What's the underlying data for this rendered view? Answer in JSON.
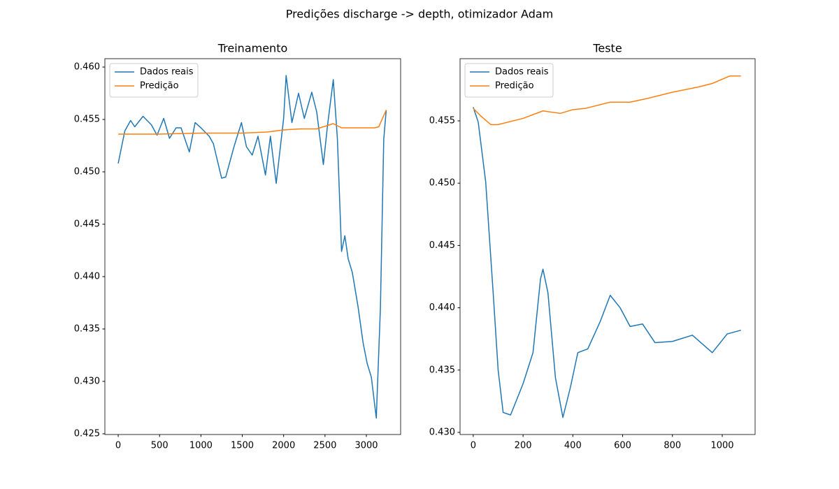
{
  "title": "Predições discharge -> depth, otimizador Adam",
  "chart_data": [
    {
      "type": "line",
      "title": "Treinamento",
      "legend": "upper left",
      "grid": false,
      "xlim": [
        -161,
        3414
      ],
      "ylim": [
        0.42493,
        0.4608
      ],
      "xticks": [
        0,
        500,
        1000,
        1500,
        2000,
        2500,
        3000
      ],
      "yticks": [
        0.425,
        {
          "value": 0.43,
          "label": "0.430"
        },
        0.435,
        {
          "value": 0.44,
          "label": "0.440"
        },
        0.445,
        {
          "value": 0.45,
          "label": "0.450"
        },
        0.455,
        {
          "value": 0.46,
          "label": "0.460"
        }
      ],
      "series": [
        {
          "name": "Dados reais",
          "color": "#1f77b4",
          "x": [
            0,
            80,
            150,
            200,
            300,
            400,
            470,
            550,
            620,
            700,
            760,
            860,
            930,
            1000,
            1100,
            1150,
            1250,
            1300,
            1400,
            1490,
            1550,
            1620,
            1690,
            1780,
            1840,
            1910,
            2000,
            2030,
            2100,
            2180,
            2250,
            2340,
            2400,
            2480,
            2530,
            2600,
            2650,
            2700,
            2740,
            2780,
            2830,
            2900,
            2960,
            3010,
            3060,
            3120,
            3170,
            3210,
            3240
          ],
          "values": [
            0.4508,
            0.4539,
            0.4549,
            0.4543,
            0.4553,
            0.4545,
            0.4535,
            0.4551,
            0.4532,
            0.4542,
            0.4542,
            0.4519,
            0.4547,
            0.4542,
            0.4534,
            0.4527,
            0.4494,
            0.4495,
            0.4524,
            0.4547,
            0.4524,
            0.4516,
            0.4534,
            0.4497,
            0.4534,
            0.4489,
            0.4551,
            0.4592,
            0.4547,
            0.4575,
            0.4551,
            0.4576,
            0.4557,
            0.4507,
            0.4544,
            0.4588,
            0.4531,
            0.4424,
            0.4439,
            0.4417,
            0.4404,
            0.4371,
            0.4337,
            0.4317,
            0.4304,
            0.4265,
            0.4371,
            0.4531,
            0.4559
          ]
        },
        {
          "name": "Predição",
          "color": "#ff7f0e",
          "x": [
            0,
            500,
            1000,
            1500,
            1800,
            2000,
            2200,
            2400,
            2600,
            2700,
            3000,
            3100,
            3150,
            3240
          ],
          "values": [
            0.4536,
            0.4536,
            0.4537,
            0.4537,
            0.4538,
            0.454,
            0.4541,
            0.4541,
            0.4546,
            0.4542,
            0.4542,
            0.4542,
            0.4543,
            0.4559
          ]
        }
      ]
    },
    {
      "type": "line",
      "title": "Teste",
      "legend": "upper left",
      "grid": false,
      "xlim": [
        -53,
        1132
      ],
      "ylim": [
        0.42983,
        0.45999
      ],
      "xticks": [
        0,
        200,
        400,
        600,
        800,
        1000
      ],
      "yticks": [
        {
          "value": 0.43,
          "label": "0.430"
        },
        0.435,
        {
          "value": 0.44,
          "label": "0.440"
        },
        0.445,
        {
          "value": 0.45,
          "label": "0.450"
        },
        0.455
      ],
      "series": [
        {
          "name": "Dados reais",
          "color": "#1f77b4",
          "x": [
            0,
            20,
            50,
            80,
            100,
            120,
            150,
            200,
            240,
            270,
            280,
            300,
            330,
            360,
            390,
            420,
            460,
            510,
            550,
            590,
            630,
            680,
            730,
            800,
            880,
            960,
            1020,
            1075
          ],
          "values": [
            0.4561,
            0.4549,
            0.4501,
            0.4412,
            0.435,
            0.4316,
            0.4314,
            0.4339,
            0.4364,
            0.4423,
            0.4431,
            0.4412,
            0.4344,
            0.4312,
            0.4336,
            0.4364,
            0.4367,
            0.4389,
            0.441,
            0.44,
            0.4385,
            0.4387,
            0.4372,
            0.4373,
            0.4378,
            0.4364,
            0.4379,
            0.4382
          ]
        },
        {
          "name": "Predição",
          "color": "#ff7f0e",
          "x": [
            0,
            30,
            70,
            100,
            200,
            280,
            350,
            400,
            450,
            550,
            630,
            700,
            800,
            900,
            960,
            1030,
            1075
          ],
          "values": [
            0.456,
            0.4554,
            0.4547,
            0.4547,
            0.4552,
            0.4558,
            0.4556,
            0.4559,
            0.456,
            0.4565,
            0.4565,
            0.4568,
            0.4573,
            0.4577,
            0.458,
            0.4586,
            0.4586
          ]
        }
      ]
    }
  ]
}
